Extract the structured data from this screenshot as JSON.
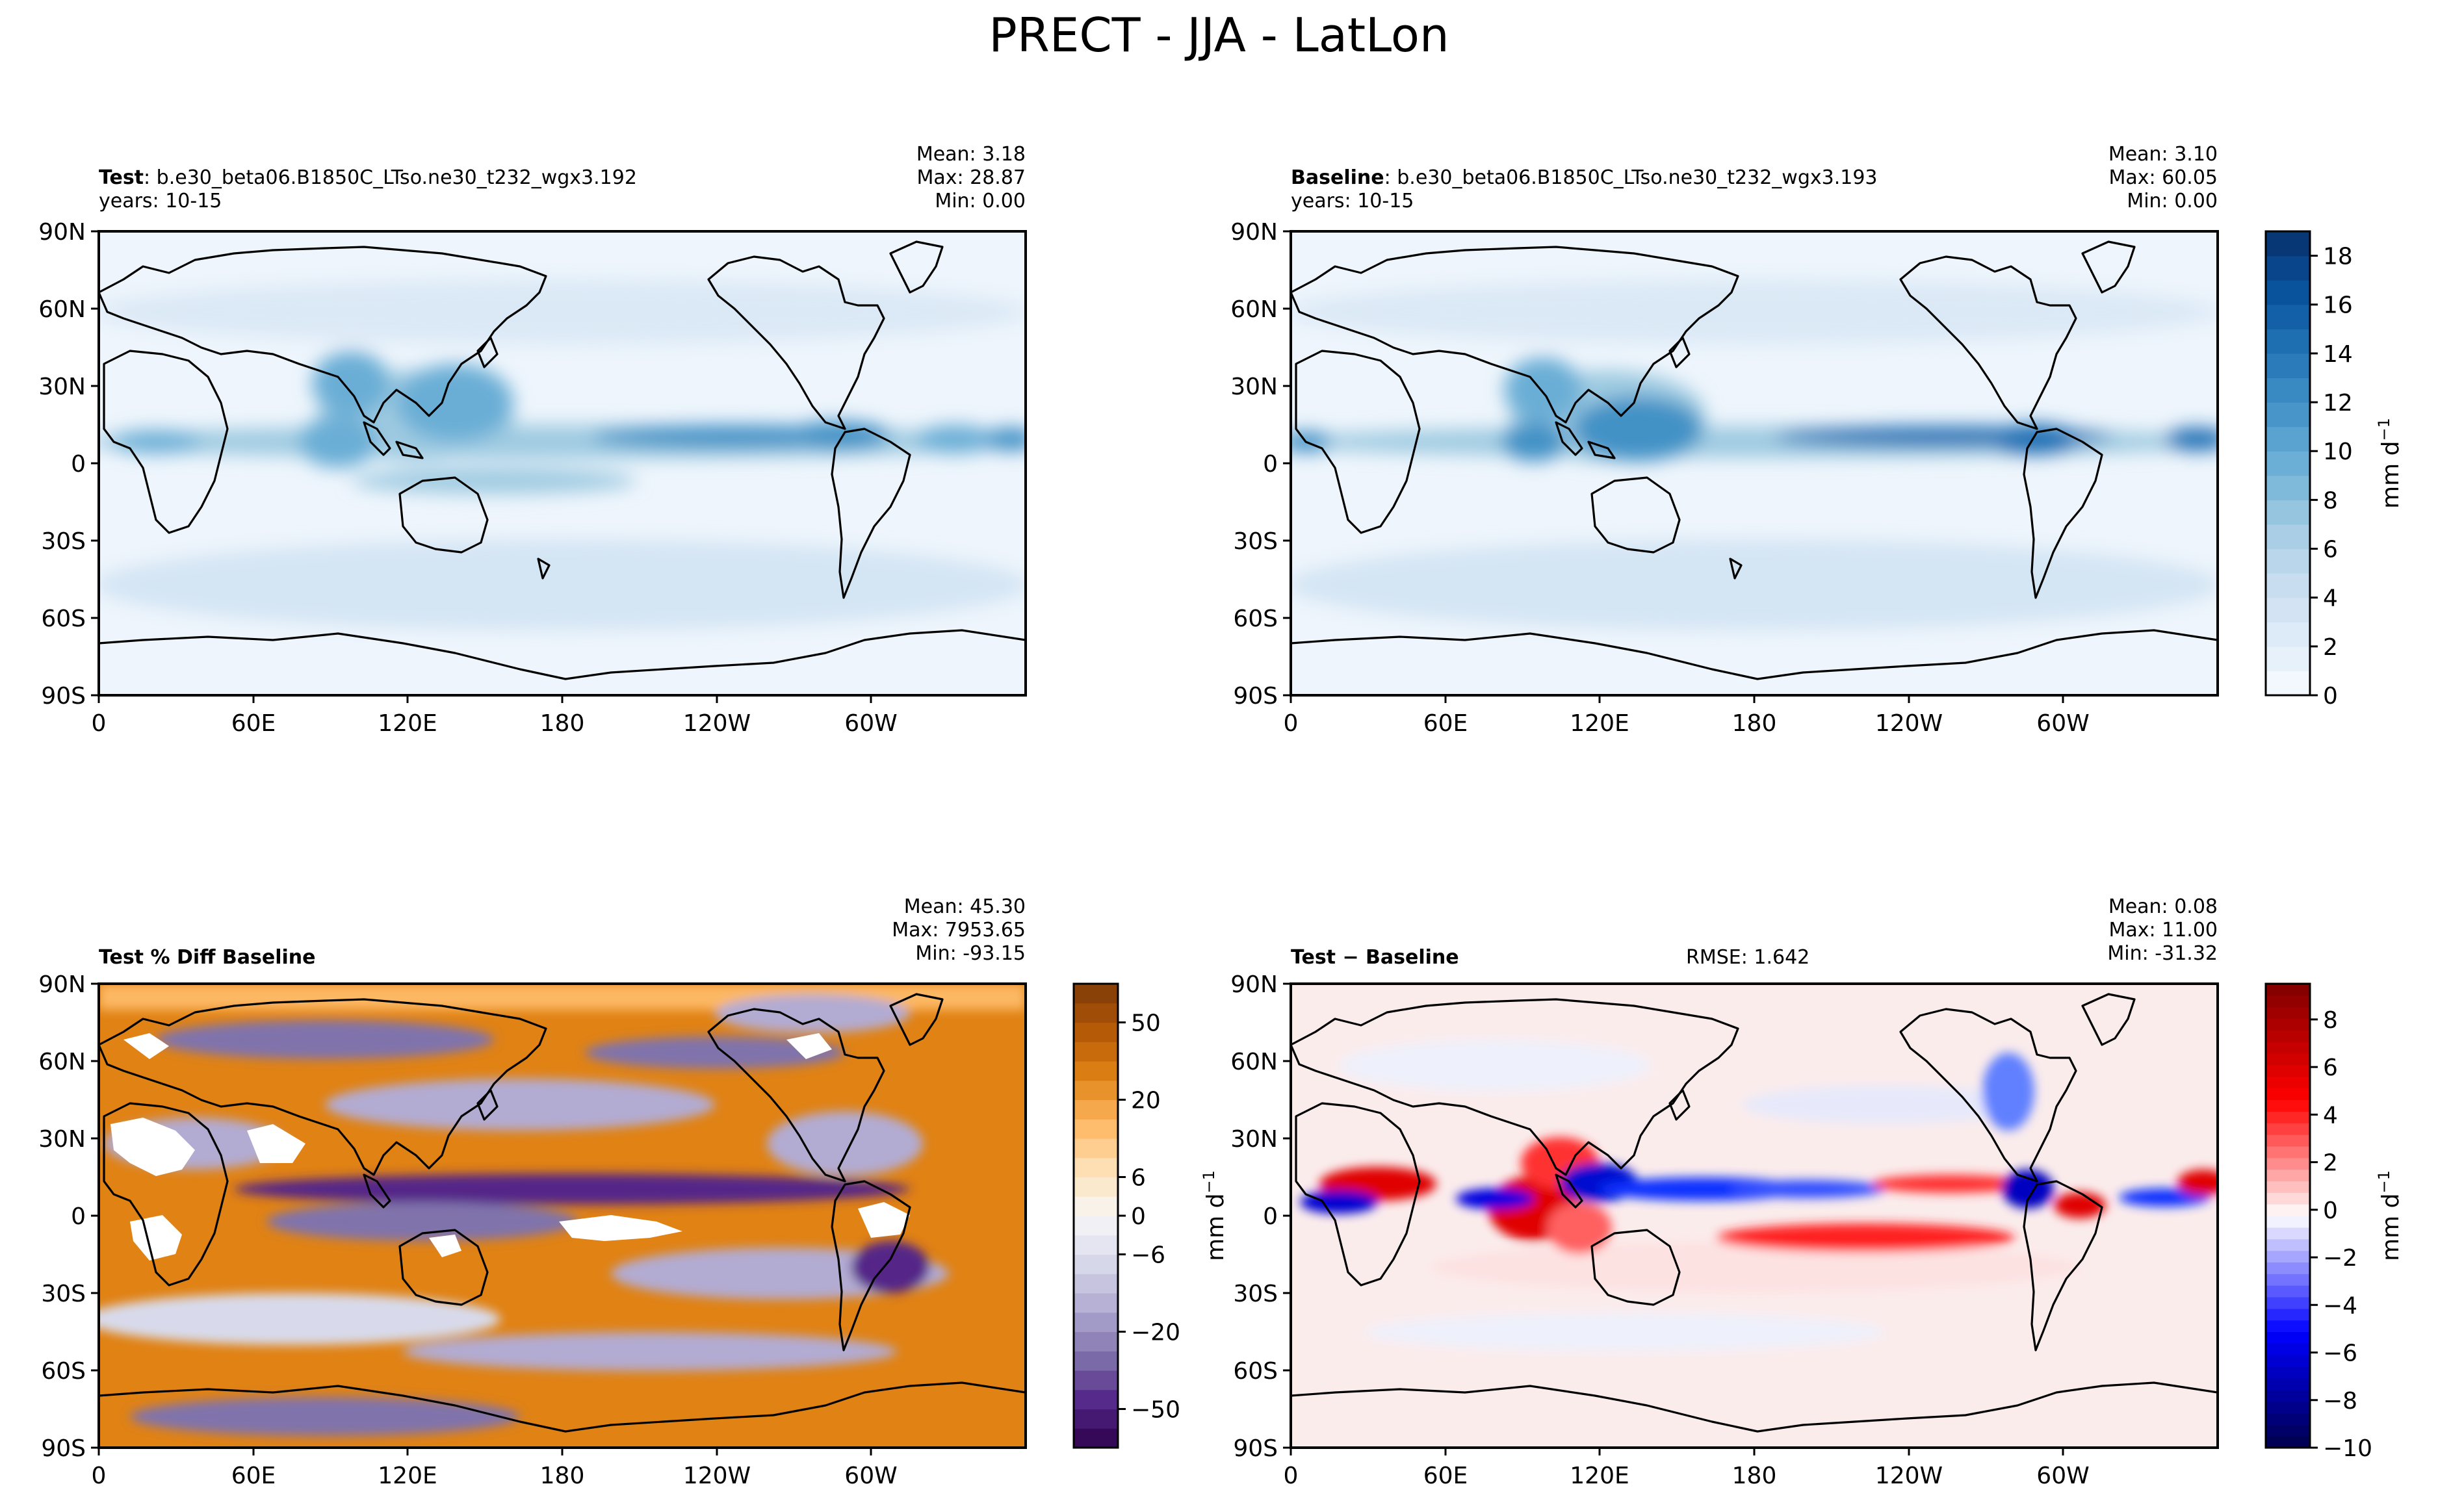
{
  "figure": {
    "title": "PRECT - JJA - LatLon"
  },
  "chart_data": [
    {
      "type": "heatmap",
      "panel": "test",
      "title_bold": "Test",
      "title_text": ": b.e30_beta06.B1850C_LTso.ne30_t232_wgx3.192",
      "subtitle": "years: 10-15",
      "stats": {
        "mean": "Mean:  3.18",
        "max": "Max: 28.87",
        "min": "Min:  0.00"
      },
      "x_ticks": [
        "0",
        "60E",
        "120E",
        "180",
        "120W",
        "60W"
      ],
      "x_tick_values": [
        0,
        60,
        120,
        180,
        240,
        300
      ],
      "y_ticks": [
        "90N",
        "60N",
        "30N",
        "0",
        "30S",
        "60S",
        "90S"
      ],
      "y_tick_values": [
        90,
        60,
        30,
        0,
        -30,
        -60,
        -90
      ],
      "xlim": [
        0,
        360
      ],
      "ylim": [
        -90,
        90
      ],
      "colormap": "Blues",
      "colorbar": {
        "label": "mm d",
        "label_sup": "−1",
        "ticks": [
          "0",
          "2",
          "4",
          "6",
          "8",
          "10",
          "12",
          "14",
          "16",
          "18"
        ],
        "tick_values": [
          0,
          2,
          4,
          6,
          8,
          10,
          12,
          14,
          16,
          18
        ],
        "range": [
          0,
          19
        ]
      }
    },
    {
      "type": "heatmap",
      "panel": "baseline",
      "title_bold": "Baseline",
      "title_text": ": b.e30_beta06.B1850C_LTso.ne30_t232_wgx3.193",
      "subtitle": "years: 10-15",
      "stats": {
        "mean": "Mean:  3.10",
        "max": "Max: 60.05",
        "min": "Min:  0.00"
      },
      "x_ticks": [
        "0",
        "60E",
        "120E",
        "180",
        "120W",
        "60W"
      ],
      "x_tick_values": [
        0,
        60,
        120,
        180,
        240,
        300
      ],
      "y_ticks": [
        "90N",
        "60N",
        "30N",
        "0",
        "30S",
        "60S",
        "90S"
      ],
      "y_tick_values": [
        90,
        60,
        30,
        0,
        -30,
        -60,
        -90
      ],
      "xlim": [
        0,
        360
      ],
      "ylim": [
        -90,
        90
      ],
      "colormap": "Blues"
    },
    {
      "type": "heatmap",
      "panel": "pct_diff",
      "title_bold": "Test % Diff Baseline",
      "stats": {
        "mean": "Mean: 45.30",
        "max": "Max: 7953.65",
        "min": "Min: -93.15"
      },
      "x_ticks": [
        "0",
        "60E",
        "120E",
        "180",
        "120W",
        "60W"
      ],
      "x_tick_values": [
        0,
        60,
        120,
        180,
        240,
        300
      ],
      "y_ticks": [
        "90N",
        "60N",
        "30N",
        "0",
        "30S",
        "60S",
        "90S"
      ],
      "y_tick_values": [
        90,
        60,
        30,
        0,
        -30,
        -60,
        -90
      ],
      "xlim": [
        0,
        360
      ],
      "ylim": [
        -90,
        90
      ],
      "colormap": "PuOr",
      "colorbar": {
        "ticks": [
          "50",
          "20",
          "6",
          "0",
          "−6",
          "−20",
          "−50"
        ],
        "tick_levels": [
          11,
          9,
          7,
          6,
          5,
          3,
          1
        ],
        "levels": 12
      }
    },
    {
      "type": "heatmap",
      "panel": "diff",
      "title_bold": "Test − Baseline",
      "rmse": "RMSE: 1.642",
      "stats": {
        "mean": "Mean:  0.08",
        "max": "Max: 11.00",
        "min": "Min: -31.32"
      },
      "x_ticks": [
        "0",
        "60E",
        "120E",
        "180",
        "120W",
        "60W"
      ],
      "x_tick_values": [
        0,
        60,
        120,
        180,
        240,
        300
      ],
      "y_ticks": [
        "90N",
        "60N",
        "30N",
        "0",
        "30S",
        "60S",
        "90S"
      ],
      "y_tick_values": [
        90,
        60,
        30,
        0,
        -30,
        -60,
        -90
      ],
      "xlim": [
        0,
        360
      ],
      "ylim": [
        -90,
        90
      ],
      "ylabel": "mm d",
      "ylabel_sup": "−1",
      "colormap": "seismic",
      "colorbar": {
        "label": "mm d",
        "label_sup": "−1",
        "ticks": [
          "8",
          "6",
          "4",
          "2",
          "0",
          "−2",
          "−4",
          "−6",
          "−8",
          "−10"
        ],
        "tick_values": [
          8,
          6,
          4,
          2,
          0,
          -2,
          -4,
          -6,
          -8,
          -10
        ],
        "range": [
          -10,
          9.5
        ]
      }
    }
  ],
  "colors": {
    "blues": [
      "#f7fbff",
      "#deebf7",
      "#c6dbef",
      "#9ecae1",
      "#6baed6",
      "#4292c6",
      "#2171b5",
      "#08519c",
      "#08306b"
    ],
    "puor": [
      "#2d004b",
      "#542788",
      "#8073ac",
      "#b2abd2",
      "#d8daeb",
      "#f7f7f7",
      "#fee0b6",
      "#fdb863",
      "#e08214",
      "#b35806",
      "#7f3b08"
    ],
    "seismic": [
      "#00004c",
      "#0000ff",
      "#ffffff",
      "#ff0000",
      "#800000"
    ],
    "coast": "#000000"
  }
}
